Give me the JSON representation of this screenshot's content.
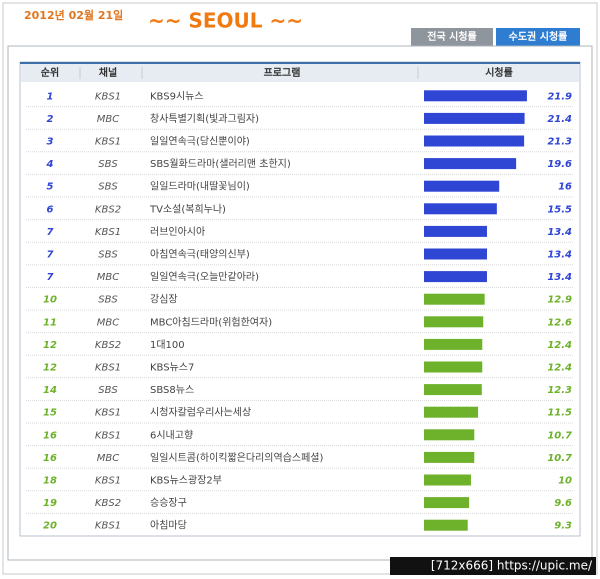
{
  "header": {
    "date": "2012년 02월 21일",
    "title": "~~ SEOUL ~~",
    "tabs": [
      "전국 시청률",
      "수도권 시청률"
    ]
  },
  "table": {
    "columns": [
      "순위",
      "채널",
      "프로그램",
      "시청률"
    ],
    "rows": [
      {
        "rank": 1,
        "channel": "KBS1",
        "program": "KBS9시뉴스",
        "rating": 21.9,
        "color": "#2f45d4"
      },
      {
        "rank": 2,
        "channel": "MBC",
        "program": "창사특별기획(빛과그림자)",
        "rating": 21.4,
        "color": "#2f45d4"
      },
      {
        "rank": 3,
        "channel": "KBS1",
        "program": "일일연속극(당신뿐이야)",
        "rating": 21.3,
        "color": "#2f45d4"
      },
      {
        "rank": 4,
        "channel": "SBS",
        "program": "SBS월화드라마(샐러리맨 초한지)",
        "rating": 19.6,
        "color": "#2f45d4"
      },
      {
        "rank": 5,
        "channel": "SBS",
        "program": "일일드라마(내딸꽃님이)",
        "rating": 16,
        "color": "#2f45d4"
      },
      {
        "rank": 6,
        "channel": "KBS2",
        "program": "TV소설(복희누나)",
        "rating": 15.5,
        "color": "#2f45d4"
      },
      {
        "rank": 7,
        "channel": "KBS1",
        "program": "러브인아시아",
        "rating": 13.4,
        "color": "#2f45d4"
      },
      {
        "rank": 7,
        "channel": "SBS",
        "program": "아침연속극(태양의신부)",
        "rating": 13.4,
        "color": "#2f45d4"
      },
      {
        "rank": 7,
        "channel": "MBC",
        "program": "일일연속극(오늘만같아라)",
        "rating": 13.4,
        "color": "#2f45d4"
      },
      {
        "rank": 10,
        "channel": "SBS",
        "program": "강심장",
        "rating": 12.9,
        "color": "#6db22a"
      },
      {
        "rank": 11,
        "channel": "MBC",
        "program": "MBC아침드라마(위험한여자)",
        "rating": 12.6,
        "color": "#6db22a"
      },
      {
        "rank": 12,
        "channel": "KBS2",
        "program": "1대100",
        "rating": 12.4,
        "color": "#6db22a"
      },
      {
        "rank": 12,
        "channel": "KBS1",
        "program": "KBS뉴스7",
        "rating": 12.4,
        "color": "#6db22a"
      },
      {
        "rank": 14,
        "channel": "SBS",
        "program": "SBS8뉴스",
        "rating": 12.3,
        "color": "#6db22a"
      },
      {
        "rank": 15,
        "channel": "KBS1",
        "program": "시청자칼럼우리사는세상",
        "rating": 11.5,
        "color": "#6db22a"
      },
      {
        "rank": 16,
        "channel": "KBS1",
        "program": "6시내고향",
        "rating": 10.7,
        "color": "#6db22a"
      },
      {
        "rank": 16,
        "channel": "MBC",
        "program": "일일시트콤(하이킥짧은다리의역습스페셜)",
        "rating": 10.7,
        "color": "#6db22a"
      },
      {
        "rank": 18,
        "channel": "KBS1",
        "program": "KBS뉴스광장2부",
        "rating": 10,
        "color": "#6db22a"
      },
      {
        "rank": 19,
        "channel": "KBS2",
        "program": "승승장구",
        "rating": 9.6,
        "color": "#6db22a"
      },
      {
        "rank": 20,
        "channel": "KBS1",
        "program": "아침마당",
        "rating": 9.3,
        "color": "#6db22a"
      }
    ]
  },
  "watermark": "[712x666] https://upic.me/"
}
